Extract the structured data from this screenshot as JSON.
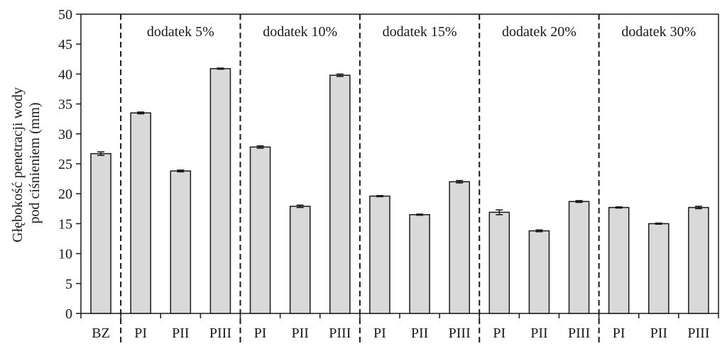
{
  "chart_data": {
    "type": "bar",
    "ylabel_lines": [
      "Głębokość penetracji wody",
      "pod ciśnieniem (mm)"
    ],
    "ylim": [
      0,
      50
    ],
    "yticks": [
      0,
      5,
      10,
      15,
      20,
      25,
      30,
      35,
      40,
      45,
      50
    ],
    "grid": false,
    "bar_color": "#d9d9d9",
    "categories": [
      "BZ",
      "PI",
      "PII",
      "PIII",
      "PI",
      "PII",
      "PIII",
      "PI",
      "PII",
      "PIII",
      "PI",
      "PII",
      "PIII",
      "PI",
      "PII",
      "PIII"
    ],
    "values": [
      26.7,
      33.5,
      23.8,
      40.9,
      27.8,
      17.9,
      39.8,
      19.6,
      16.5,
      22.0,
      16.9,
      13.8,
      18.7,
      17.7,
      15.0,
      17.7
    ],
    "errors": [
      0.3,
      0.15,
      0.15,
      0.1,
      0.2,
      0.2,
      0.2,
      0.1,
      0.1,
      0.2,
      0.4,
      0.15,
      0.15,
      0.1,
      0.1,
      0.2
    ],
    "groups": [
      {
        "label": "dodatek 5%",
        "start": 1,
        "end": 3
      },
      {
        "label": "dodatek 10%",
        "start": 4,
        "end": 6
      },
      {
        "label": "dodatek 15%",
        "start": 7,
        "end": 9
      },
      {
        "label": "dodatek 20%",
        "start": 10,
        "end": 12
      },
      {
        "label": "dodatek 30%",
        "start": 13,
        "end": 15
      }
    ]
  }
}
